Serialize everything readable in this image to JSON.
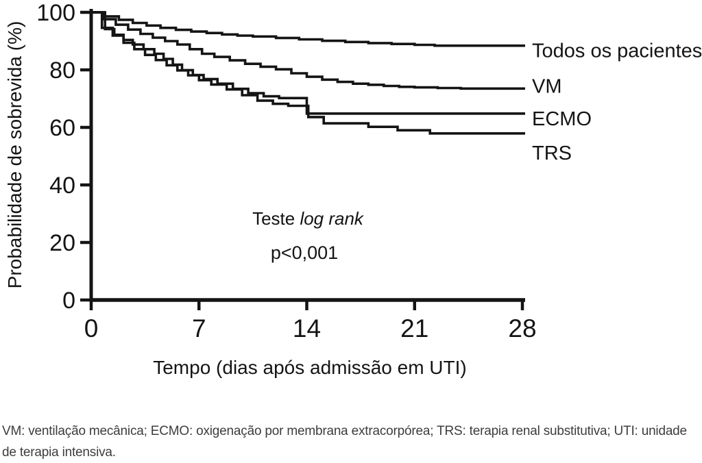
{
  "figure": {
    "y_axis_title": "Probabilidade de sobrevida (%)",
    "x_axis_title": "Tempo (dias após admissão em UTI)",
    "annotation": {
      "line1_prefix": "Teste ",
      "line1_italic": "log rank",
      "line2": "p<0,001"
    },
    "footnote": "VM: ventilação mecânica; ECMO: oxigenação por membrana extracorpórea; TRS: terapia renal substitutiva; UTI: unidade de terapia intensiva.",
    "ink_color": "#141414",
    "footnote_color": "#3d3d3d"
  },
  "chart_data": {
    "type": "line",
    "style": "kaplan-meier-step",
    "title": "",
    "xlabel": "Tempo (dias após admissão em UTI)",
    "ylabel": "Probabilidade de sobrevida (%)",
    "xlim": [
      0,
      28
    ],
    "ylim": [
      0,
      100
    ],
    "x_ticks": [
      0,
      7,
      14,
      21,
      28
    ],
    "y_ticks": [
      0,
      20,
      40,
      60,
      80,
      100
    ],
    "grid": false,
    "legend_position": "labels-right-of-curves",
    "annotations": [
      "Teste log rank",
      "p<0,001"
    ],
    "series": [
      {
        "name": "Todos os pacientes",
        "end_value": 88.4,
        "points": [
          [
            0,
            100
          ],
          [
            0.9,
            98.6
          ],
          [
            1.8,
            97.4
          ],
          [
            2.7,
            96.3
          ],
          [
            3.6,
            95.4
          ],
          [
            4.5,
            94.6
          ],
          [
            5.5,
            93.9
          ],
          [
            6.5,
            93.3
          ],
          [
            7.5,
            92.8
          ],
          [
            8.5,
            92.3
          ],
          [
            9.5,
            91.9
          ],
          [
            10.5,
            91.6
          ],
          [
            12,
            91.1
          ],
          [
            13.5,
            90.6
          ],
          [
            15,
            90.1
          ],
          [
            16.5,
            89.7
          ],
          [
            18,
            89.3
          ],
          [
            19.5,
            89.0
          ],
          [
            21,
            88.7
          ],
          [
            22.3,
            88.4
          ],
          [
            28,
            88.4
          ]
        ]
      },
      {
        "name": "VM",
        "end_value": 73.5,
        "points": [
          [
            0,
            100
          ],
          [
            0.8,
            97.6
          ],
          [
            1.6,
            95.7
          ],
          [
            2.4,
            94.0
          ],
          [
            3.2,
            92.5
          ],
          [
            4,
            91.2
          ],
          [
            4.8,
            90.0
          ],
          [
            5.6,
            88.8
          ],
          [
            6.4,
            87.2
          ],
          [
            7.2,
            85.6
          ],
          [
            8,
            84.5
          ],
          [
            9,
            83.3
          ],
          [
            10,
            82.1
          ],
          [
            11,
            81.1
          ],
          [
            12,
            80.2
          ],
          [
            13,
            78.8
          ],
          [
            14,
            77.6
          ],
          [
            15,
            76.6
          ],
          [
            16,
            75.8
          ],
          [
            17,
            75.2
          ],
          [
            18,
            74.8
          ],
          [
            19,
            74.4
          ],
          [
            20,
            74.1
          ],
          [
            21,
            73.9
          ],
          [
            22.5,
            73.7
          ],
          [
            24,
            73.5
          ],
          [
            28,
            73.5
          ]
        ]
      },
      {
        "name": "ECMO",
        "end_value": 64.8,
        "points": [
          [
            0,
            100
          ],
          [
            0.9,
            94.2
          ],
          [
            1.5,
            92.2
          ],
          [
            2.1,
            90.4
          ],
          [
            2.7,
            88.8
          ],
          [
            3.4,
            87.2
          ],
          [
            4.1,
            85.6
          ],
          [
            4.7,
            83.8
          ],
          [
            5.3,
            81.8
          ],
          [
            5.9,
            79.9
          ],
          [
            6.6,
            78.2
          ],
          [
            7.3,
            76.8
          ],
          [
            8.2,
            75.2
          ],
          [
            9.2,
            73.4
          ],
          [
            10.2,
            71.9
          ],
          [
            11.2,
            70.8
          ],
          [
            12.2,
            70.2
          ],
          [
            14,
            64.8
          ],
          [
            28,
            64.8
          ]
        ]
      },
      {
        "name": "TRS",
        "end_value": 57.9,
        "points": [
          [
            0,
            100
          ],
          [
            0.7,
            94.6
          ],
          [
            1.4,
            91.9
          ],
          [
            2.1,
            89.4
          ],
          [
            2.8,
            87.2
          ],
          [
            3.5,
            85.2
          ],
          [
            4.2,
            83.4
          ],
          [
            4.9,
            81.6
          ],
          [
            5.6,
            79.8
          ],
          [
            6.3,
            78.1
          ],
          [
            7,
            76.4
          ],
          [
            7.8,
            74.9
          ],
          [
            8.8,
            73.2
          ],
          [
            9.8,
            71.2
          ],
          [
            10.8,
            69.3
          ],
          [
            11.8,
            68.2
          ],
          [
            12.8,
            67.5
          ],
          [
            14.1,
            63.6
          ],
          [
            15.1,
            61.4
          ],
          [
            18,
            60.2
          ],
          [
            19.9,
            59.0
          ],
          [
            22,
            57.9
          ],
          [
            28,
            57.9
          ]
        ]
      }
    ]
  }
}
